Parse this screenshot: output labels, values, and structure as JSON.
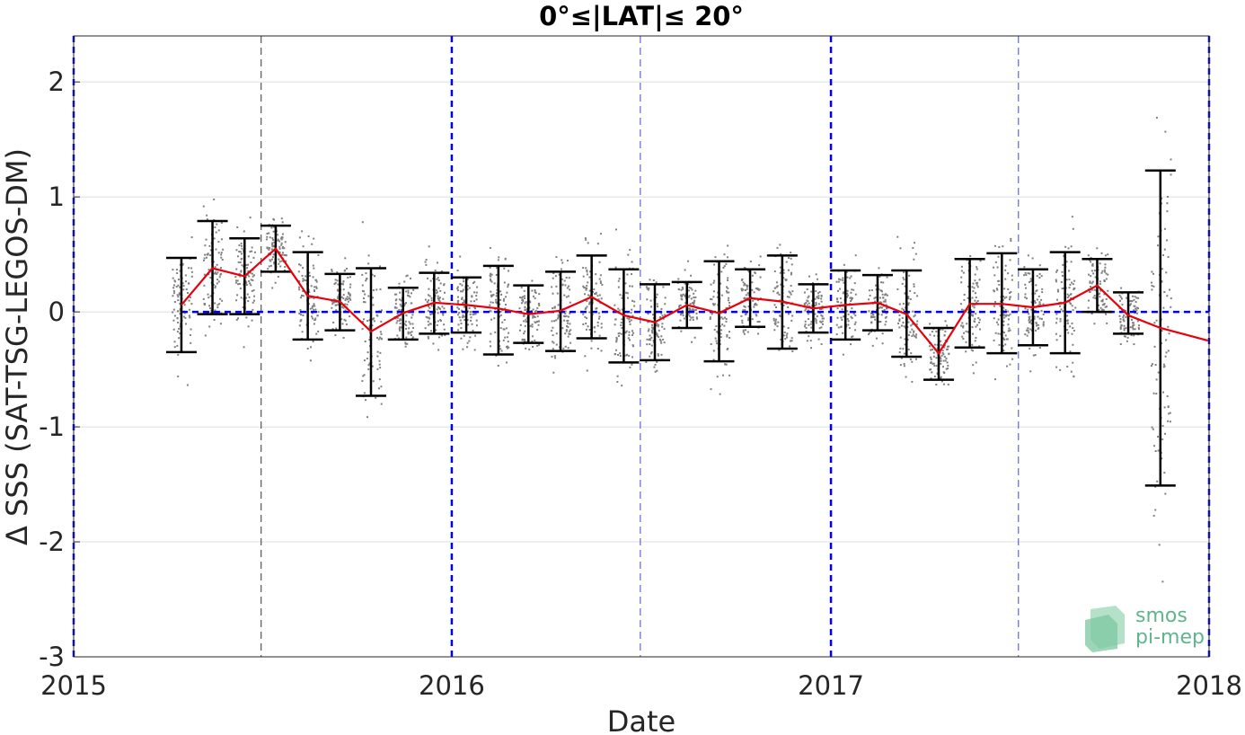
{
  "chart_data": {
    "type": "line",
    "title": "0°≤|LAT|≤ 20°",
    "xlabel": "Date",
    "ylabel": "Δ SSS (SAT-TSG-LEGOS-DM)",
    "xlim": [
      "2015-01-01",
      "2018-01-01"
    ],
    "ylim": [
      -3,
      2.4
    ],
    "x_ticks": [
      "2015",
      "2016",
      "2017",
      "2018"
    ],
    "y_ticks": [
      "-3",
      "-2",
      "-1",
      "0",
      "1",
      "2"
    ],
    "grid": true,
    "reference_line": {
      "y": 0,
      "color": "#0000ee",
      "style": "dashed"
    },
    "year_lines": [
      "2015-01-01",
      "2016-01-01",
      "2017-01-01",
      "2018-01-01"
    ],
    "midyear_lines": [
      "2015-07-01",
      "2016-07-01",
      "2017-07-01"
    ],
    "colors": {
      "mean_line": "#e8000b",
      "errorbar": "#000000",
      "scatter": "#808080",
      "reference": "#0000ee"
    },
    "series": [
      {
        "kind": "monthly_mean_with_std",
        "x": [
          "2015-04-15",
          "2015-05-15",
          "2015-06-15",
          "2015-07-15",
          "2015-08-15",
          "2015-09-15",
          "2015-10-15",
          "2015-11-15",
          "2015-12-15",
          "2016-01-15",
          "2016-02-15",
          "2016-03-15",
          "2016-04-15",
          "2016-05-15",
          "2016-06-15",
          "2016-07-15",
          "2016-08-15",
          "2016-09-15",
          "2016-10-15",
          "2016-11-15",
          "2016-12-15",
          "2017-01-15",
          "2017-02-15",
          "2017-03-15",
          "2017-04-15",
          "2017-05-15",
          "2017-06-15",
          "2017-07-15",
          "2017-08-15",
          "2017-09-15",
          "2017-10-15",
          "2017-11-15",
          "2017-12-31"
        ],
        "mean": [
          0.06,
          0.38,
          0.31,
          0.55,
          0.14,
          0.09,
          -0.17,
          -0.01,
          0.08,
          0.06,
          0.03,
          -0.02,
          0.01,
          0.13,
          -0.03,
          -0.09,
          0.06,
          -0.01,
          0.12,
          0.09,
          0.03,
          0.06,
          0.08,
          -0.02,
          -0.36,
          0.07,
          0.07,
          0.04,
          0.08,
          0.23,
          -0.03,
          -0.14,
          -0.25
        ],
        "upper": [
          0.47,
          0.79,
          0.64,
          0.75,
          0.52,
          0.33,
          0.38,
          0.21,
          0.34,
          0.3,
          0.4,
          0.23,
          0.35,
          0.49,
          0.37,
          0.24,
          0.26,
          0.44,
          0.37,
          0.49,
          0.24,
          0.36,
          0.32,
          0.36,
          -0.14,
          0.46,
          0.51,
          0.37,
          0.52,
          0.46,
          0.17,
          1.23,
          null
        ],
        "lower": [
          -0.35,
          -0.02,
          -0.02,
          0.35,
          -0.24,
          -0.16,
          -0.73,
          -0.24,
          -0.19,
          -0.18,
          -0.37,
          -0.27,
          -0.34,
          -0.23,
          -0.44,
          -0.42,
          -0.14,
          -0.43,
          -0.13,
          -0.32,
          -0.18,
          -0.24,
          -0.16,
          -0.39,
          -0.59,
          -0.31,
          -0.36,
          -0.29,
          -0.36,
          0.0,
          -0.19,
          -1.51,
          null
        ]
      }
    ]
  },
  "watermark": {
    "line1": "smos",
    "line2": "pi-mep"
  }
}
